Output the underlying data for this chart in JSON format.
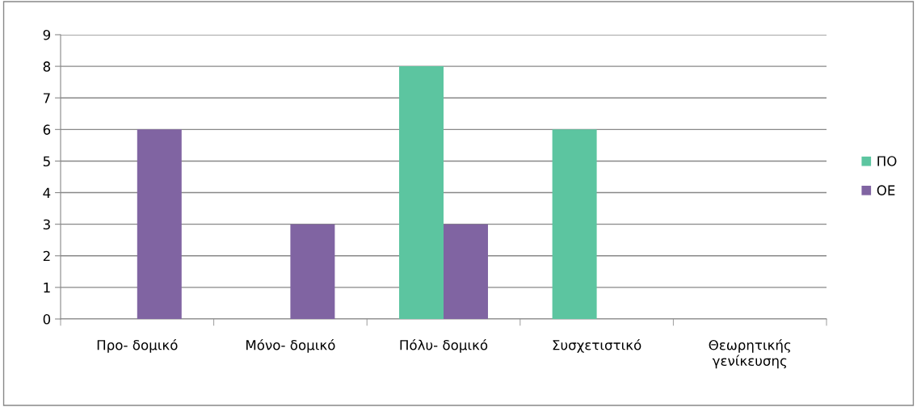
{
  "chart_data": {
    "type": "bar",
    "categories": [
      "Προ- δομικό",
      "Μόνο- δομικό",
      "Πόλυ- δομικό",
      "Συσχετιστικό",
      "Θεωρητικής\nγενίκευσης"
    ],
    "series": [
      {
        "name": "ΠΟ",
        "color": "#5cc5a0",
        "values": [
          0,
          0,
          8,
          6,
          0
        ]
      },
      {
        "name": "ΟΕ",
        "color": "#8064a2",
        "values": [
          6,
          3,
          3,
          0,
          0
        ]
      }
    ],
    "ylim": [
      0,
      9
    ],
    "yticks": [
      0,
      1,
      2,
      3,
      4,
      5,
      6,
      7,
      8,
      9
    ],
    "grid": "y",
    "legend": "right"
  }
}
